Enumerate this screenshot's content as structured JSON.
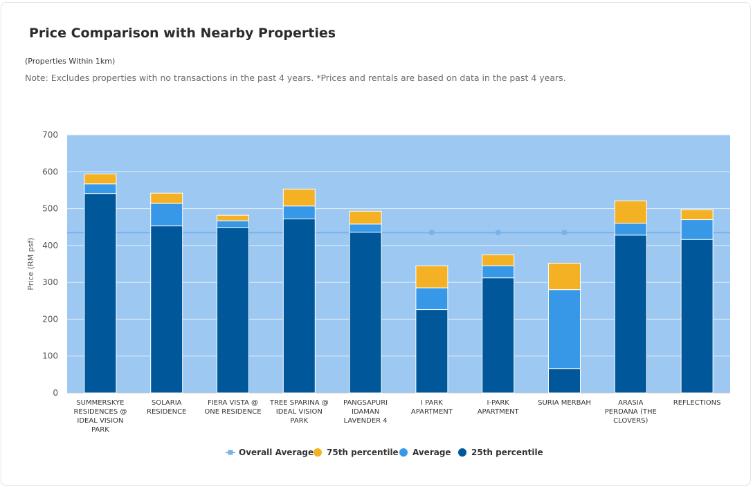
{
  "header": {
    "title": "Price Comparison with Nearby Properties",
    "subtitle": "(Properties Within 1km)",
    "note": "Note: Excludes properties with no transactions in the past 4 years. *Prices and rentals are based on data in the past 4 years."
  },
  "colors": {
    "p25": "#00589a",
    "avg": "#3898e8",
    "p75": "#f4b124",
    "overall": "#79b2ea",
    "plot_bg": "#9dc8f1"
  },
  "chart_data": {
    "type": "bar",
    "stacked": true,
    "ylabel": "Price (RM psf)",
    "ylim": [
      0,
      700
    ],
    "yticks": [
      "0",
      "100",
      "200",
      "300",
      "400",
      "500",
      "600",
      "700"
    ],
    "grid": true,
    "legend_position": "bottom",
    "categories": [
      [
        "SUMMERSKYE",
        "RESIDENCES @",
        "IDEAL VISION",
        "PARK"
      ],
      [
        "SOLARIA",
        "RESIDENCE"
      ],
      [
        "FIERA VISTA @",
        "ONE RESIDENCE"
      ],
      [
        "TREE SPARINA @",
        "IDEAL VISION",
        "PARK"
      ],
      [
        "PANGSAPURI",
        "IDAMAN",
        "LAVENDER 4"
      ],
      [
        "I PARK",
        "APARTMENT"
      ],
      [
        "I-PARK",
        "APARTMENT"
      ],
      [
        "SURIA MERBAH"
      ],
      [
        "ARASIA",
        "PERDANA (THE",
        "CLOVERS)"
      ],
      [
        "REFLECTIONS"
      ]
    ],
    "series": [
      {
        "name": "25th percentile",
        "values": [
          541,
          453,
          449,
          472,
          436,
          226,
          312,
          66,
          428,
          416
        ]
      },
      {
        "name": "Average",
        "values": [
          567,
          514,
          467,
          507,
          458,
          285,
          345,
          280,
          460,
          470
        ]
      },
      {
        "name": "75th percentile",
        "values": [
          594,
          542,
          482,
          553,
          493,
          345,
          375,
          352,
          521,
          497
        ]
      },
      {
        "name": "Overall Average",
        "value": 435
      }
    ],
    "legend": [
      "Overall Average",
      "75th percentile",
      "Average",
      "25th percentile"
    ]
  }
}
